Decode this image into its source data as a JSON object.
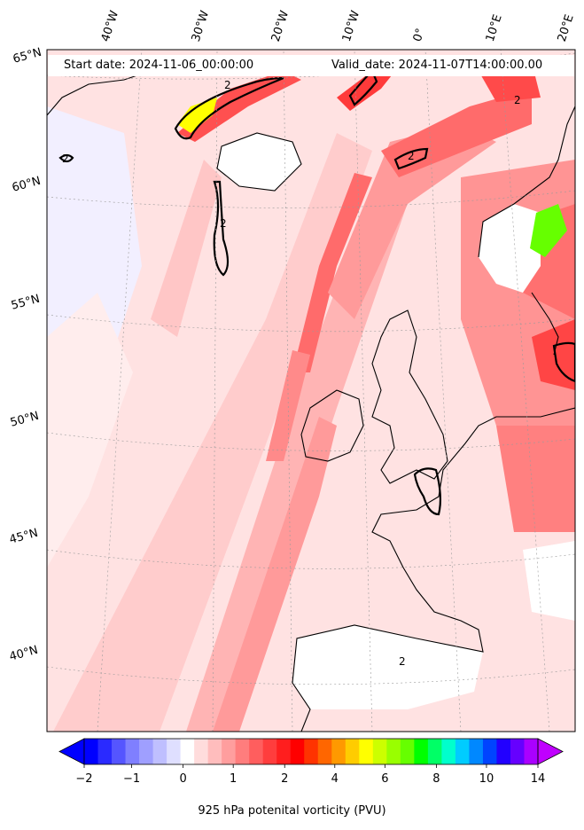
{
  "header": {
    "start_date": "Start date: 2024-11-06_00:00:00",
    "valid_date": "Valid_date: 2024-11-07T14:00:00.00"
  },
  "latitude_labels": [
    "65°N",
    "60°N",
    "55°N",
    "50°N",
    "45°N",
    "40°N"
  ],
  "longitude_labels": [
    "40°W",
    "30°W",
    "20°W",
    "10°W",
    "0°",
    "10°E",
    "20°E"
  ],
  "contour_label": "2",
  "colorbar": {
    "title": "925 hPa potenital vorticity (PVU)",
    "ticks": [
      "−2",
      "−1",
      "0",
      "1",
      "2",
      "4",
      "6",
      "8",
      "10",
      "14"
    ],
    "colors": [
      "#0000ff",
      "#2a2aff",
      "#5555ff",
      "#7f7fff",
      "#9f9fff",
      "#bfbfff",
      "#dfdfff",
      "#ffffff",
      "#ffdcdc",
      "#ffbdbd",
      "#ff9e9e",
      "#ff7d7d",
      "#ff5e5e",
      "#ff3d3d",
      "#ff1e1e",
      "#ff0000",
      "#ff3300",
      "#ff6600",
      "#ff9900",
      "#ffcc00",
      "#ffff00",
      "#ccff00",
      "#99ff00",
      "#66ff00",
      "#00ff00",
      "#00ff66",
      "#00ffcc",
      "#00ccff",
      "#0088ff",
      "#0044ff",
      "#2200ff",
      "#6600ff",
      "#aa00ff"
    ],
    "under_color": "#0000ff",
    "over_color": "#c000ff"
  }
}
